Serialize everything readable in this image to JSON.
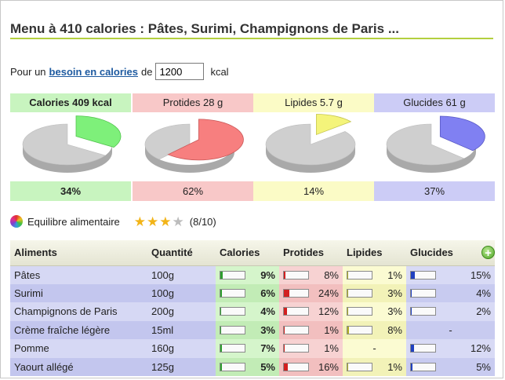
{
  "title": "Menu à 410 calories : Pâtes, Surimi, Champignons de Paris ...",
  "need": {
    "prefix": "Pour un",
    "link": "besoin en calories",
    "middle": "de",
    "value": "1200",
    "unit": "kcal"
  },
  "nutrients": [
    {
      "label": "Calories 409 kcal",
      "pct_label": "34%",
      "fraction": 0.34,
      "bold_label": true,
      "bold_pct": true,
      "head_bg": "#c8f4bf",
      "foot_bg": "#c8f4bf",
      "slice_color": "#7ef07a",
      "slice_dark": "#52c44e"
    },
    {
      "label": "Protides 28 g",
      "pct_label": "62%",
      "fraction": 0.62,
      "bold_label": false,
      "bold_pct": false,
      "head_bg": "#f8c8c8",
      "foot_bg": "#f8c8c8",
      "slice_color": "#f77f7f",
      "slice_dark": "#c95858"
    },
    {
      "label": "Lipides 5.7 g",
      "pct_label": "14%",
      "fraction": 0.14,
      "bold_label": false,
      "bold_pct": false,
      "head_bg": "#fbfbc6",
      "foot_bg": "#fbfbc6",
      "slice_color": "#f4f47a",
      "slice_dark": "#c6c652"
    },
    {
      "label": "Glucides 61 g",
      "pct_label": "37%",
      "fraction": 0.37,
      "bold_label": false,
      "bold_pct": false,
      "head_bg": "#ccccf6",
      "foot_bg": "#ccccf6",
      "slice_color": "#8080f2",
      "slice_dark": "#5858c4"
    }
  ],
  "balance": {
    "label": "Equilibre alimentaire",
    "stars_on": 3,
    "stars_total": 4,
    "score": "(8/10)"
  },
  "table": {
    "headers": [
      "Aliments",
      "Quantité",
      "Calories",
      "Protides",
      "Lipides",
      "Glucides"
    ],
    "bar_colors": {
      "cal": "#2e9e2e",
      "pro": "#d22020",
      "lip": "#b0b020",
      "glu": "#2040c0"
    },
    "rows": [
      {
        "name": "Pâtes",
        "qty": "100g",
        "cal": "9%",
        "cal_f": 0.09,
        "pro": "8%",
        "pro_f": 0.08,
        "lip": "1%",
        "lip_f": 0.01,
        "glu": "15%",
        "glu_f": 0.15
      },
      {
        "name": "Surimi",
        "qty": "100g",
        "cal": "6%",
        "cal_f": 0.06,
        "pro": "24%",
        "pro_f": 0.24,
        "lip": "3%",
        "lip_f": 0.03,
        "glu": "4%",
        "glu_f": 0.04
      },
      {
        "name": "Champignons de Paris",
        "qty": "200g",
        "cal": "4%",
        "cal_f": 0.04,
        "pro": "12%",
        "pro_f": 0.12,
        "lip": "3%",
        "lip_f": 0.03,
        "glu": "2%",
        "glu_f": 0.02
      },
      {
        "name": "Crème fraîche légère",
        "qty": "15ml",
        "cal": "3%",
        "cal_f": 0.03,
        "pro": "1%",
        "pro_f": 0.01,
        "lip": "8%",
        "lip_f": 0.08,
        "glu": "-",
        "glu_f": null
      },
      {
        "name": "Pomme",
        "qty": "160g",
        "cal": "7%",
        "cal_f": 0.07,
        "pro": "1%",
        "pro_f": 0.01,
        "lip": "-",
        "lip_f": null,
        "glu": "12%",
        "glu_f": 0.12
      },
      {
        "name": "Yaourt allégé",
        "qty": "125g",
        "cal": "5%",
        "cal_f": 0.05,
        "pro": "16%",
        "pro_f": 0.16,
        "lip": "1%",
        "lip_f": 0.01,
        "glu": "5%",
        "glu_f": 0.05
      }
    ]
  }
}
